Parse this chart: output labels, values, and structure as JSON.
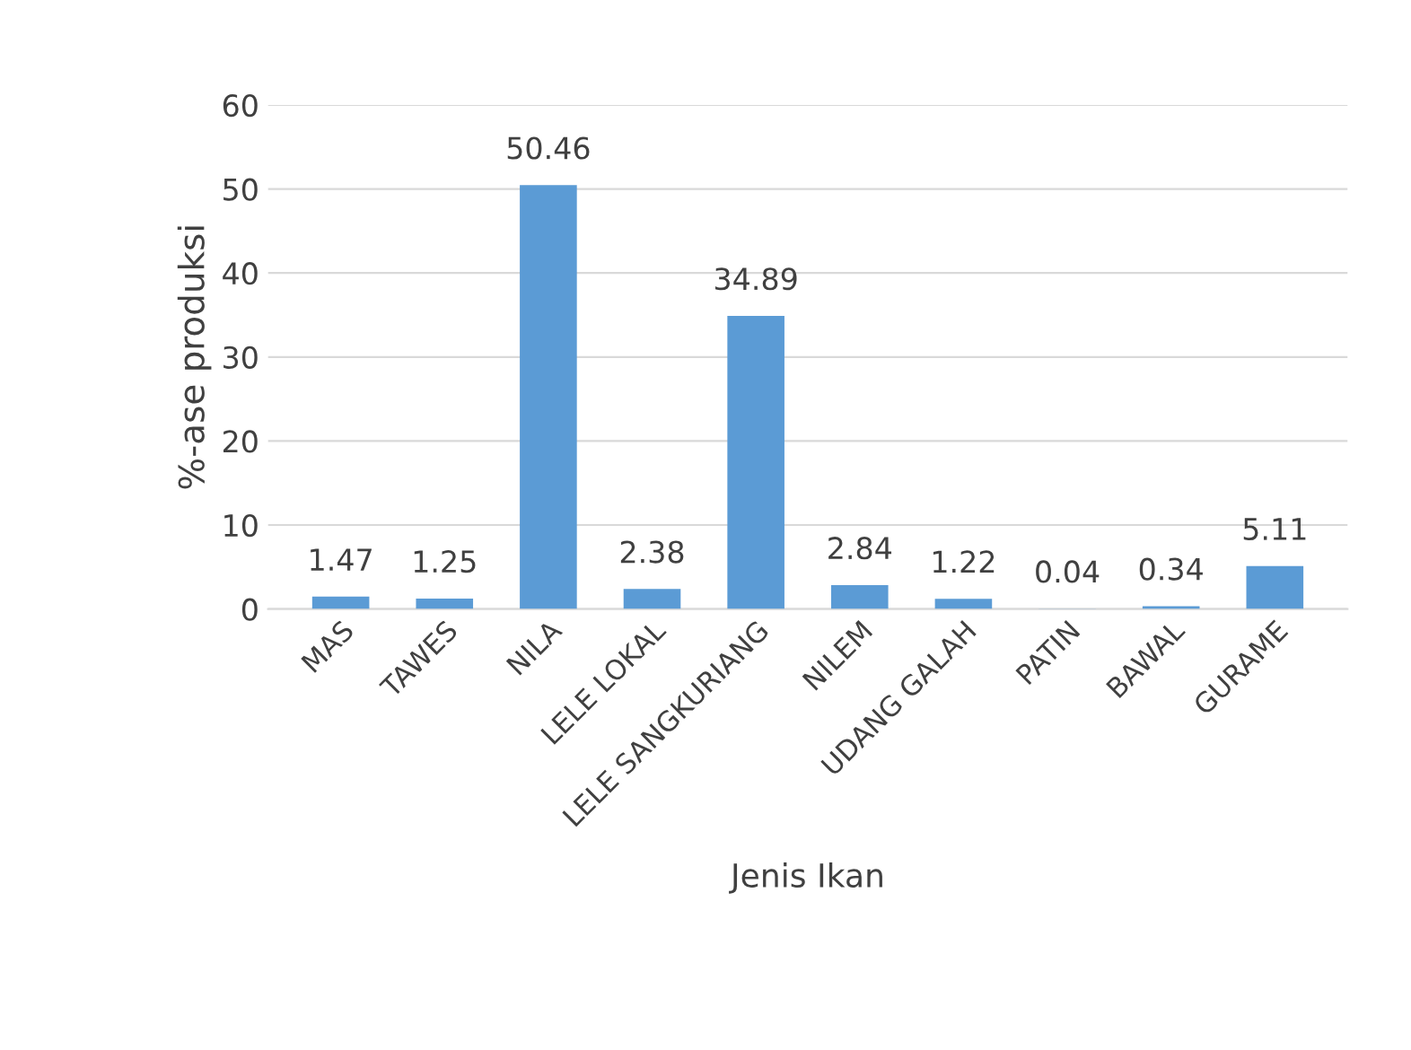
{
  "chart_data": {
    "type": "bar",
    "xlabel": "Jenis Ikan",
    "ylabel": "%-ase produksi",
    "categories": [
      "MAS",
      "TAWES",
      "NILA",
      "LELE LOKAL",
      "LELE SANGKURIANG",
      "NILEM",
      "UDANG GALAH",
      "PATIN",
      "BAWAL",
      "GURAME"
    ],
    "values": [
      1.47,
      1.25,
      50.46,
      2.38,
      34.89,
      2.84,
      1.22,
      0.04,
      0.34,
      5.11
    ],
    "color": "#5b9bd5",
    "ylim": [
      0,
      60
    ],
    "yticks": [
      0,
      10,
      20,
      30,
      40,
      50,
      60
    ],
    "grid": "y",
    "data_labels": true
  }
}
